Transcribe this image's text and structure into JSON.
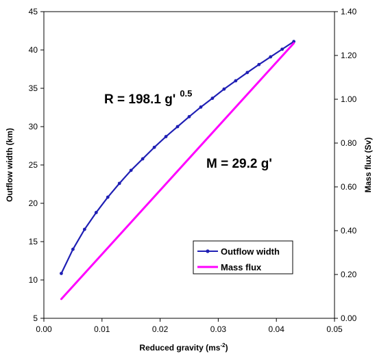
{
  "chart_data": {
    "type": "line",
    "xlabel": "Reduced gravity (ms",
    "xlabel_exponent": "-2",
    "xlabel_close": ")",
    "ylabel_left": "Outflow width (km)",
    "ylabel_right": "Mass flux (Sv)",
    "xlim": [
      0,
      0.05
    ],
    "ylim_left": [
      5,
      45
    ],
    "ylim_right": [
      0,
      1.4
    ],
    "x_ticks": [
      "0.00",
      "0.01",
      "0.02",
      "0.03",
      "0.04",
      "0.05"
    ],
    "y_left_ticks": [
      "5",
      "10",
      "15",
      "20",
      "25",
      "30",
      "35",
      "40",
      "45"
    ],
    "y_right_ticks": [
      "0.00",
      "0.20",
      "0.40",
      "0.60",
      "0.80",
      "1.00",
      "1.20",
      "1.40"
    ],
    "grid": false,
    "legend_position": "bottom-right",
    "series": [
      {
        "name": "Outflow width",
        "axis": "left",
        "color": "#1f1fb4",
        "marker": "circle",
        "x": [
          0.003,
          0.005,
          0.007,
          0.009,
          0.011,
          0.013,
          0.015,
          0.017,
          0.019,
          0.021,
          0.023,
          0.025,
          0.027,
          0.029,
          0.031,
          0.033,
          0.035,
          0.037,
          0.039,
          0.041,
          0.043
        ],
        "y": [
          10.85,
          14.0,
          16.6,
          18.8,
          20.8,
          22.6,
          24.3,
          25.8,
          27.3,
          28.7,
          30.0,
          31.3,
          32.55,
          33.7,
          34.9,
          35.98,
          37.06,
          38.1,
          39.1,
          40.1,
          41.1
        ]
      },
      {
        "name": "Mass flux",
        "axis": "right",
        "color": "#ff00ff",
        "marker": "none",
        "x": [
          0.003,
          0.043
        ],
        "y": [
          0.088,
          1.256
        ]
      }
    ],
    "annotations": [
      {
        "id": "r",
        "main": "R = 198.1 g'",
        "superscript": "0.5"
      },
      {
        "id": "m",
        "main": "M = 29.2 g'"
      }
    ]
  }
}
